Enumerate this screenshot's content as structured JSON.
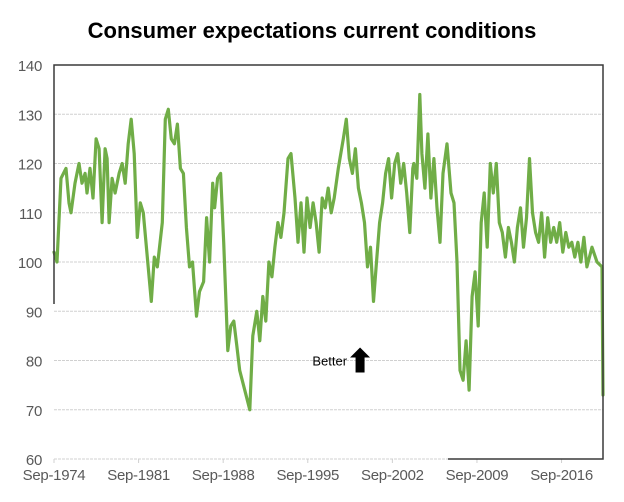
{
  "chart_data": {
    "type": "line",
    "title": "Consumer expectations current conditions",
    "xlabel": "",
    "ylabel": "",
    "ylim": [
      60,
      140
    ],
    "yticks": [
      60,
      70,
      80,
      90,
      100,
      110,
      120,
      130,
      140
    ],
    "ytick_labels": [
      "60",
      "70",
      "80",
      "90",
      "100",
      "110",
      "120",
      "130",
      "140"
    ],
    "xlim": [
      1974.67,
      2020.1
    ],
    "xticks": [
      1974.67,
      1981.67,
      1988.67,
      1995.67,
      2002.67,
      2009.67,
      2016.67
    ],
    "xtick_labels": [
      "Sep-1974",
      "Sep-1981",
      "Sep-1988",
      "Sep-1995",
      "Sep-2002",
      "Sep-2009",
      "Sep-2016"
    ],
    "grid": true,
    "legend": "none",
    "annotation": {
      "text": "Better",
      "arrow": "up",
      "x": 1999.5,
      "y": 80
    },
    "series": [
      {
        "name": "Consumer expectations current conditions",
        "color": "#70AD47",
        "x": [
          1974.67,
          1974.92,
          1975.25,
          1975.66,
          1975.91,
          1976.08,
          1976.41,
          1976.74,
          1976.99,
          1977.24,
          1977.4,
          1977.65,
          1977.9,
          1978.15,
          1978.4,
          1978.65,
          1978.9,
          1979.06,
          1979.23,
          1979.48,
          1979.73,
          1980.06,
          1980.31,
          1980.56,
          1980.81,
          1981.06,
          1981.31,
          1981.56,
          1981.81,
          1982.06,
          1982.39,
          1982.72,
          1982.97,
          1983.22,
          1983.63,
          1983.88,
          1984.13,
          1984.38,
          1984.63,
          1984.88,
          1985.13,
          1985.38,
          1985.63,
          1985.88,
          1986.13,
          1986.46,
          1986.71,
          1987.05,
          1987.3,
          1987.55,
          1987.8,
          1987.96,
          1988.21,
          1988.46,
          1988.71,
          1989.05,
          1989.3,
          1989.55,
          1989.8,
          1990.04,
          1990.87,
          1991.12,
          1991.45,
          1991.7,
          1991.95,
          1992.2,
          1992.45,
          1992.7,
          1992.95,
          1993.2,
          1993.45,
          1993.7,
          1994.03,
          1994.28,
          1994.61,
          1994.86,
          1995.11,
          1995.36,
          1995.61,
          1995.86,
          1996.11,
          1996.36,
          1996.61,
          1996.86,
          1997.11,
          1997.36,
          1997.61,
          1997.86,
          1998.2,
          1998.61,
          1998.86,
          1999.11,
          1999.36,
          1999.61,
          1999.86,
          2000.11,
          2000.36,
          2000.61,
          2000.86,
          2001.11,
          2001.36,
          2001.61,
          2001.86,
          2002.11,
          2002.36,
          2002.61,
          2002.86,
          2003.11,
          2003.36,
          2003.61,
          2003.86,
          2004.11,
          2004.36,
          2004.44,
          2004.69,
          2004.94,
          2005.11,
          2005.36,
          2005.61,
          2005.86,
          2006.11,
          2006.36,
          2006.61,
          2006.86,
          2007.19,
          2007.52,
          2007.77,
          2008.02,
          2008.27,
          2008.52,
          2008.77,
          2009.02,
          2009.27,
          2009.52,
          2009.77,
          2010.02,
          2010.27,
          2010.52,
          2010.77,
          2011.02,
          2011.27,
          2011.52,
          2011.77,
          2012.02,
          2012.27,
          2012.52,
          2012.77,
          2013.02,
          2013.27,
          2013.52,
          2013.77,
          2014.02,
          2014.27,
          2014.52,
          2014.77,
          2015.02,
          2015.27,
          2015.52,
          2015.77,
          2016.02,
          2016.27,
          2016.52,
          2016.77,
          2017.02,
          2017.27,
          2017.52,
          2017.77,
          2018.02,
          2018.27,
          2018.52,
          2018.77,
          2019.19,
          2019.6,
          2020.02,
          2020.1
        ],
        "y": [
          102,
          100,
          117,
          119,
          112,
          110,
          116,
          120,
          116,
          118,
          114,
          119,
          113,
          125,
          123,
          108,
          123,
          121,
          108,
          117,
          114,
          118,
          120,
          116,
          124,
          129,
          122,
          105,
          112,
          110,
          101,
          92,
          101,
          99,
          108,
          129,
          131,
          125,
          124,
          128,
          119,
          118,
          107,
          99,
          100,
          89,
          94,
          96,
          109,
          100,
          116,
          111,
          117,
          118,
          104,
          82,
          87,
          88,
          83,
          78,
          70,
          85,
          90,
          84,
          93,
          88,
          100,
          97,
          103,
          108,
          105,
          110,
          121,
          122,
          113,
          104,
          112,
          102,
          113,
          107,
          112,
          108,
          102,
          113,
          111,
          115,
          110,
          113,
          119,
          125,
          129,
          121,
          118,
          123,
          115,
          112,
          108,
          99,
          103,
          92,
          100,
          108,
          112,
          118,
          121,
          113,
          120,
          122,
          116,
          120,
          114,
          106,
          119,
          120,
          117,
          134,
          122,
          115,
          126,
          113,
          121,
          111,
          104,
          118,
          124,
          114,
          112,
          100,
          78,
          76,
          84,
          74,
          93,
          98,
          87,
          108,
          114,
          103,
          120,
          114,
          120,
          108,
          106,
          101,
          107,
          104,
          100,
          107,
          111,
          103,
          109,
          121,
          110,
          106,
          104,
          110,
          101,
          109,
          104,
          107,
          104,
          108,
          102,
          106,
          103,
          104,
          101,
          104,
          100,
          105,
          99,
          103,
          100,
          99,
          73
        ]
      }
    ]
  }
}
